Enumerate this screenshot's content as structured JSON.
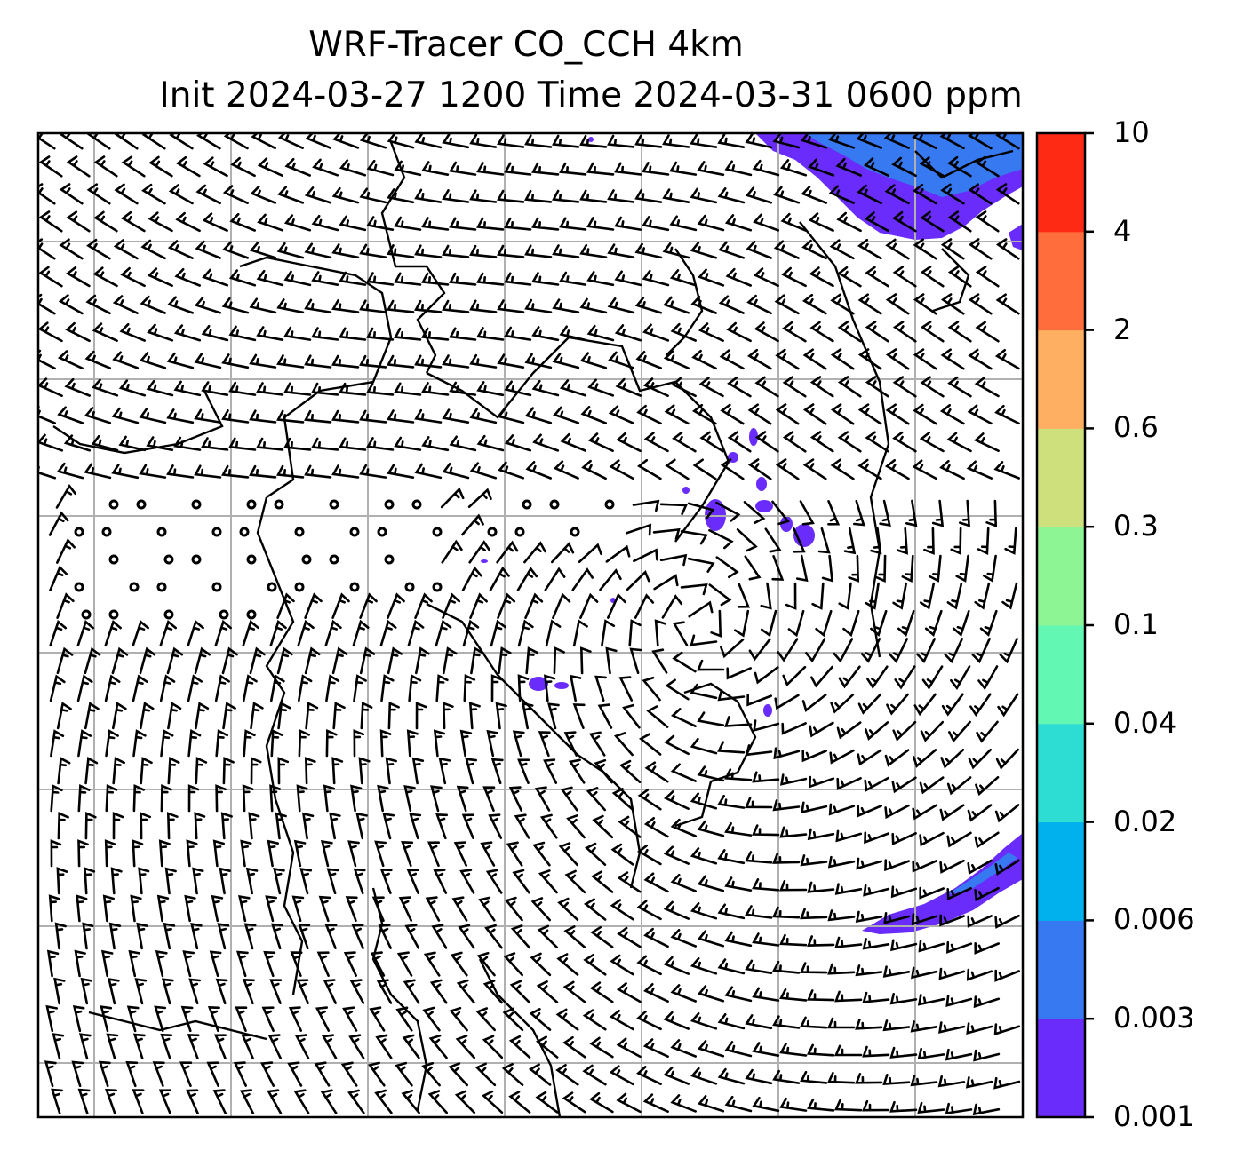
{
  "figure": {
    "title_line1": "WRF-Tracer CO_CCH 4km",
    "title_line2": "Init 2024-03-27 1200 Time 2024-03-31 0600 ppm"
  },
  "colorbar": {
    "ticks": [
      "0.001",
      "0.003",
      "0.006",
      "0.02",
      "0.04",
      "0.1",
      "0.3",
      "0.6",
      "2",
      "4",
      "10"
    ],
    "colors": [
      "#6a2cfb",
      "#3679f1",
      "#00b1ee",
      "#2ddcd3",
      "#62f8b4",
      "#8df593",
      "#cde07c",
      "#ffaf62",
      "#ff6d3c",
      "#ff2a14"
    ]
  },
  "map_layers": {
    "shading": "CO_CCH tracer (ppm)",
    "vectors": "wind barbs",
    "overlays": [
      "coastlines",
      "lat-lon gridlines"
    ]
  }
}
